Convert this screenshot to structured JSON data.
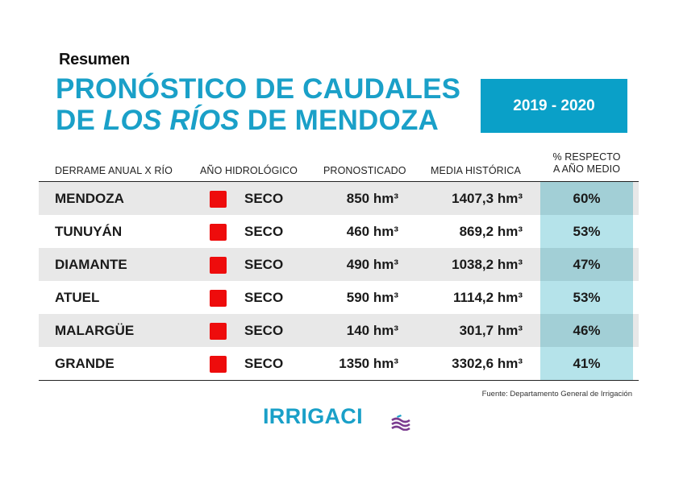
{
  "heading": {
    "resumen": "Resumen",
    "title_line1": "PRONÓSTICO DE CAUDALES",
    "title_line2_pre": "DE ",
    "title_line2_italic": "LOS RÍOS",
    "title_line2_post": " DE MENDOZA",
    "period": "2019 - 2020"
  },
  "table": {
    "headers": {
      "river": "DERRAME ANUAL X RÍO",
      "anio": "AÑO HIDROLÓGICO",
      "pronosticado": "PRONOSTICADO",
      "media": "MEDIA HISTÓRICA",
      "pct_line1": "% RESPECTO",
      "pct_line2": "A AÑO MEDIO"
    },
    "rows": [
      {
        "river": "MENDOZA",
        "anio": "SECO",
        "pronosticado": "850 hm³",
        "media": "1407,3  hm³",
        "pct": "60%"
      },
      {
        "river": "TUNUYÁN",
        "anio": "SECO",
        "pronosticado": "460 hm³",
        "media": "869,2  hm³",
        "pct": "53%"
      },
      {
        "river": "DIAMANTE",
        "anio": "SECO",
        "pronosticado": "490 hm³",
        "media": "1038,2  hm³",
        "pct": "47%"
      },
      {
        "river": "ATUEL",
        "anio": "SECO",
        "pronosticado": "590 hm³",
        "media": "1114,2  hm³",
        "pct": "53%"
      },
      {
        "river": "MALARGÜE",
        "anio": "SECO",
        "pronosticado": "140 hm³",
        "media": "301,7  hm³",
        "pct": "46%"
      },
      {
        "river": "GRANDE",
        "anio": "SECO",
        "pronosticado": "1350 hm³",
        "media": "3302,6  hm³",
        "pct": "41%"
      }
    ]
  },
  "colors": {
    "accent": "#1aa0c8",
    "dry_indicator": "#ee0c0c",
    "pct_column": "#b5e3ea",
    "row_shade": "#e8e8e8"
  },
  "fuente": "Fuente: Departamento General de Irrigación",
  "logo": {
    "text": "IRRIGACI",
    "icon": "wave-o-icon"
  }
}
